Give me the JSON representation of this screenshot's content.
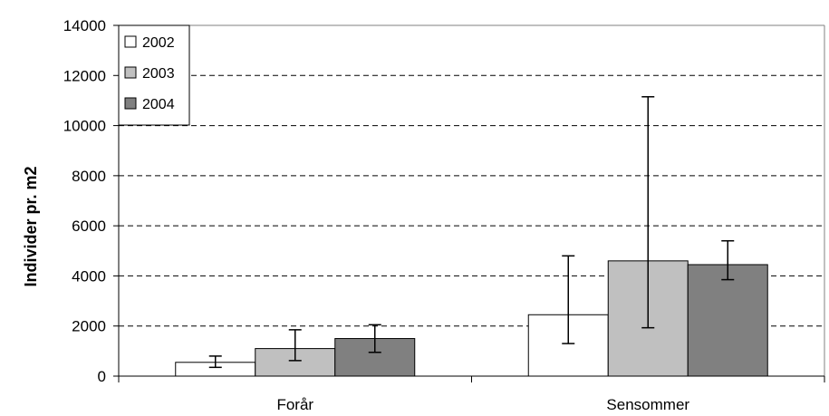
{
  "chart_data": {
    "type": "bar",
    "title": "",
    "xlabel": "",
    "ylabel": "Individer pr. m2",
    "ylim": [
      0,
      14000
    ],
    "yticks": [
      "0",
      "2000",
      "4000",
      "6000",
      "8000",
      "10000",
      "12000",
      "14000"
    ],
    "grid": "horizontal dashed",
    "legend_position": "top-left",
    "categories": [
      "Forår",
      "Sensommer"
    ],
    "series": [
      {
        "name": "2002",
        "color": "#ffffff",
        "values": [
          550,
          2450
        ],
        "err_low": [
          350,
          1300
        ],
        "err_high": [
          800,
          4800
        ]
      },
      {
        "name": "2003",
        "color": "#c0c0c0",
        "values": [
          1100,
          4600
        ],
        "err_low": [
          620,
          1930
        ],
        "err_high": [
          1850,
          11150
        ]
      },
      {
        "name": "2004",
        "color": "#808080",
        "values": [
          1500,
          4450
        ],
        "err_low": [
          950,
          3850
        ],
        "err_high": [
          2050,
          5400
        ]
      }
    ]
  }
}
